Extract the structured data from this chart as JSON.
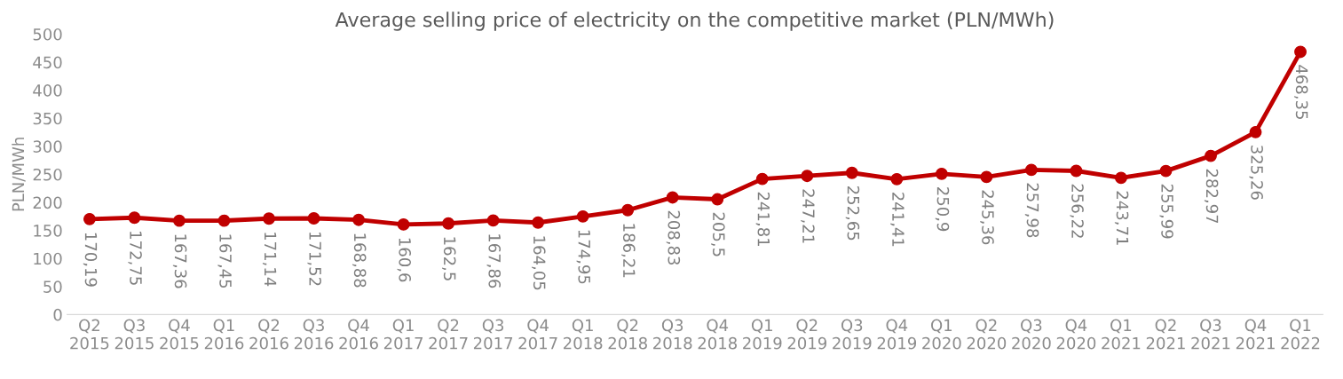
{
  "chart_data": {
    "type": "line",
    "title": "Average selling price of electricity on the competitive market (PLN/MWh)",
    "ylabel": "PLN/MWh",
    "categories": [
      "Q2\n2015",
      "Q3\n2015",
      "Q4\n2015",
      "Q1\n2016",
      "Q2\n2016",
      "Q3\n2016",
      "Q4\n2016",
      "Q1\n2017",
      "Q2\n2017",
      "Q3\n2017",
      "Q4\n2017",
      "Q1\n2018",
      "Q2\n2018",
      "Q3\n2018",
      "Q4\n2018",
      "Q1\n2019",
      "Q2\n2019",
      "Q3\n2019",
      "Q4\n2019",
      "Q1\n2020",
      "Q2\n2020",
      "Q3\n2020",
      "Q4\n2020",
      "Q1\n2021",
      "Q2\n2021",
      "Q3\n2021",
      "Q4\n2021",
      "Q1\n2022"
    ],
    "series": [
      {
        "color": "#c00000",
        "values": [
          170.19,
          172.75,
          167.36,
          167.45,
          171.14,
          171.52,
          168.88,
          160.6,
          162.5,
          167.86,
          164.05,
          174.95,
          186.21,
          208.83,
          205.5,
          241.81,
          247.21,
          252.65,
          241.41,
          250.9,
          245.36,
          257.98,
          256.22,
          243.71,
          255.99,
          282.97,
          325.26,
          468.35
        ],
        "value_labels": [
          "170,19",
          "172,75",
          "167,36",
          "167,45",
          "171,14",
          "171,52",
          "168,88",
          "160,6",
          "162,5",
          "167,86",
          "164,05",
          "174,95",
          "186,21",
          "208,83",
          "205,5",
          "241,81",
          "247,21",
          "252,65",
          "241,41",
          "250,9",
          "245,36",
          "257,98",
          "256,22",
          "243,71",
          "255,99",
          "282,97",
          "325,26",
          "468,35"
        ]
      }
    ],
    "ylim": [
      0,
      500
    ],
    "yticks": [
      0,
      50,
      100,
      150,
      200,
      250,
      300,
      350,
      400,
      450,
      500
    ],
    "grid": false,
    "marker": "circle",
    "line_style": "solid",
    "legend": false
  }
}
